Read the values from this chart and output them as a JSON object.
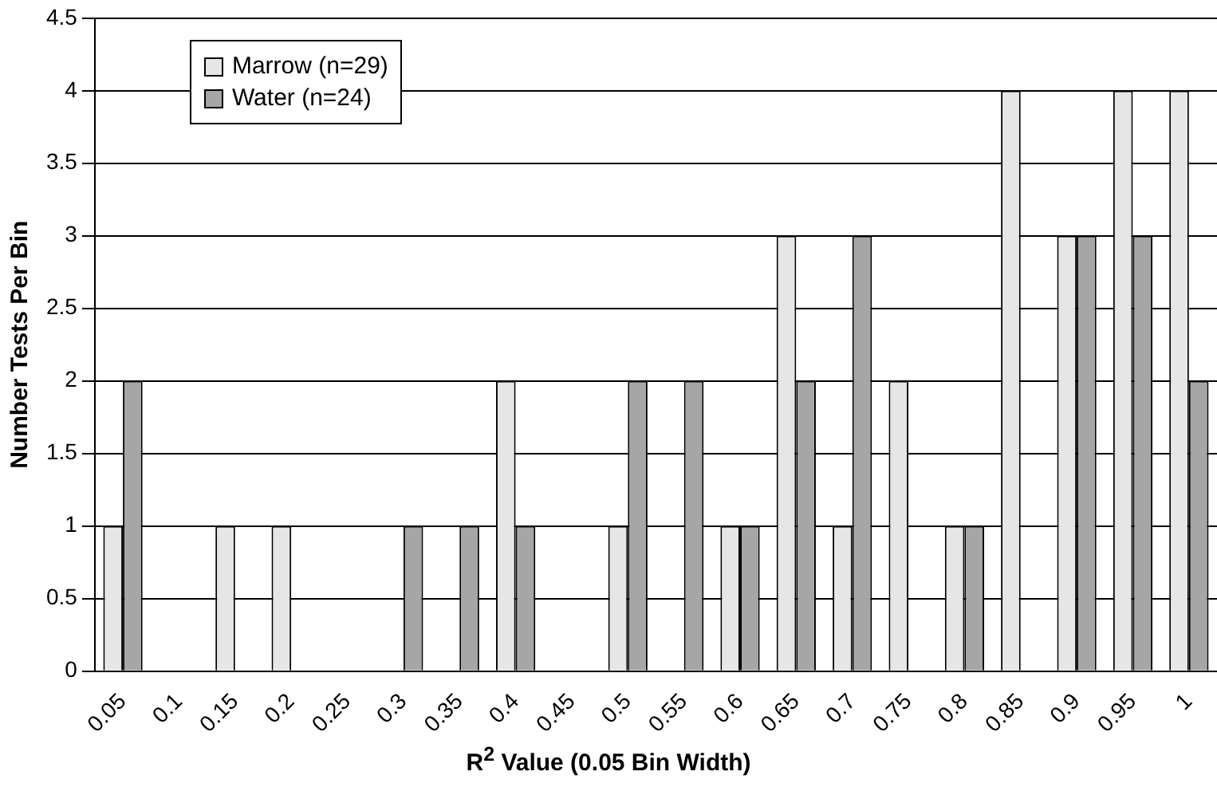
{
  "chart_data": {
    "type": "bar",
    "xlabel": "R$^{2}$ Value (0.05 Bin Width)",
    "ylabel": "Number Tests Per Bin",
    "categories": [
      "0.05",
      "0.1",
      "0.15",
      "0.2",
      "0.25",
      "0.3",
      "0.35",
      "0.4",
      "0.45",
      "0.5",
      "0.55",
      "0.6",
      "0.65",
      "0.7",
      "0.75",
      "0.8",
      "0.85",
      "0.9",
      "0.95",
      "1"
    ],
    "series": [
      {
        "name": "Marrow (n=29)",
        "color": "#e6e6e6",
        "values": [
          1,
          0,
          1,
          1,
          0,
          0,
          0,
          2,
          0,
          1,
          0,
          1,
          3,
          1,
          2,
          1,
          4,
          3,
          4,
          4
        ]
      },
      {
        "name": "Water (n=24)",
        "color": "#a6a6a6",
        "values": [
          2,
          0,
          0,
          0,
          0,
          1,
          1,
          1,
          0,
          2,
          2,
          1,
          2,
          3,
          0,
          1,
          0,
          3,
          3,
          2
        ]
      }
    ],
    "ylim": [
      0,
      4.5
    ],
    "yticks": [
      0,
      0.5,
      1,
      1.5,
      2,
      2.5,
      3,
      3.5,
      4,
      4.5
    ],
    "grid": "y",
    "legend": "top left"
  }
}
